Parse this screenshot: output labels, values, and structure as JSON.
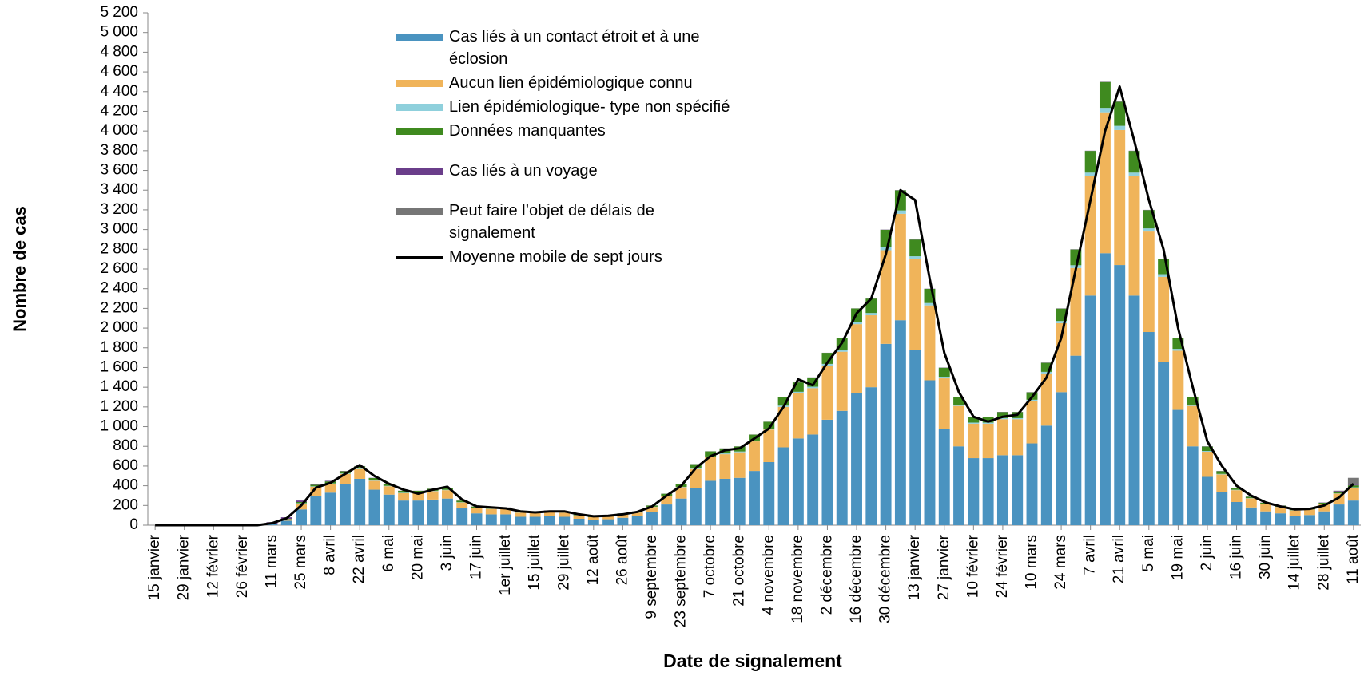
{
  "chart_data": {
    "type": "bar",
    "stacked": true,
    "x_label": "Date de signalement",
    "y_label": "Nombre de cas",
    "categories": [
      "15 janvier",
      null,
      "29 janvier",
      null,
      "12 février",
      null,
      "26 février",
      null,
      "11 mars",
      null,
      "25 mars",
      null,
      "8 avril",
      null,
      "22 avril",
      null,
      "6 mai",
      null,
      "20 mai",
      null,
      "3 juin",
      null,
      "17 juin",
      null,
      "1er juillet",
      null,
      "15 juillet",
      null,
      "29 juillet",
      null,
      "12 août",
      null,
      "26 août",
      null,
      "9 septembre",
      null,
      "23 septembre",
      null,
      "7 octobre",
      null,
      "21 octobre",
      null,
      "4 novembre",
      null,
      "18 novembre",
      null,
      "2 décembre",
      null,
      "16 décembre",
      null,
      "30 décembre",
      null,
      "13 janvier",
      null,
      "27 janvier",
      null,
      "10 février",
      null,
      "24 février",
      null,
      "10 mars",
      null,
      "24 mars",
      null,
      "7 avril",
      null,
      "21 avril",
      null,
      "5 mai",
      null,
      "19 mai",
      null,
      "2 juin",
      null,
      "16 juin",
      null,
      "30 juin",
      null,
      "14 juillet",
      null,
      "28 juillet",
      null,
      "11 août"
    ],
    "ylim": [
      0,
      5200
    ],
    "yticks": [
      0,
      200,
      400,
      600,
      800,
      {
        "value": 1000,
        "label": "1 000"
      },
      {
        "value": 1200,
        "label": "1 200"
      },
      {
        "value": 1400,
        "label": "1 400"
      },
      {
        "value": 1600,
        "label": "1 600"
      },
      {
        "value": 1800,
        "label": "1 800"
      },
      {
        "value": 2000,
        "label": "2 000"
      },
      {
        "value": 2200,
        "label": "2 200"
      },
      {
        "value": 2400,
        "label": "2 400"
      },
      {
        "value": 2600,
        "label": "2 600"
      },
      {
        "value": 2800,
        "label": "2 800"
      },
      {
        "value": 3000,
        "label": "3 000"
      },
      {
        "value": 3200,
        "label": "3 200"
      },
      {
        "value": 3400,
        "label": "3 400"
      },
      {
        "value": 3600,
        "label": "3 600"
      },
      {
        "value": 3800,
        "label": "3 800"
      },
      {
        "value": 4000,
        "label": "4 000"
      },
      {
        "value": 4200,
        "label": "4 200"
      },
      {
        "value": 4400,
        "label": "4 400"
      },
      {
        "value": 4600,
        "label": "4 600"
      },
      {
        "value": 4800,
        "label": "4 800"
      },
      {
        "value": 5000,
        "label": "5 000"
      },
      {
        "value": 5200,
        "label": "5 200"
      }
    ],
    "grid": false,
    "series": [
      {
        "name": "Cas liés à un contact étroit et à une éclosion",
        "color": "#4a93c0",
        "values": [
          0,
          0,
          0,
          0,
          0,
          0,
          0,
          0,
          10,
          45,
          160,
          300,
          330,
          420,
          470,
          360,
          310,
          250,
          250,
          260,
          270,
          170,
          120,
          110,
          110,
          85,
          85,
          90,
          85,
          65,
          55,
          60,
          75,
          90,
          130,
          210,
          270,
          380,
          450,
          470,
          480,
          550,
          640,
          790,
          880,
          920,
          1070,
          1160,
          1340,
          1400,
          1840,
          2080,
          1780,
          1470,
          980,
          800,
          680,
          680,
          710,
          710,
          830,
          1010,
          1350,
          1720,
          2330,
          2760,
          2640,
          2330,
          1960,
          1660,
          1170,
          800,
          490,
          340,
          235,
          180,
          140,
          120,
          97,
          103,
          140,
          210,
          250
        ]
      },
      {
        "name": "Aucun lien épidémiologique connu",
        "color": "#f0b45a",
        "values": [
          0,
          0,
          0,
          0,
          0,
          0,
          0,
          0,
          4,
          15,
          60,
          90,
          90,
          100,
          100,
          90,
          85,
          75,
          75,
          85,
          85,
          60,
          55,
          55,
          55,
          42,
          42,
          46,
          42,
          35,
          26,
          30,
          34,
          38,
          55,
          85,
          115,
          190,
          240,
          250,
          260,
          300,
          330,
          410,
          460,
          470,
          550,
          600,
          700,
          730,
          950,
          1080,
          920,
          760,
          510,
          410,
          350,
          350,
          365,
          365,
          430,
          530,
          700,
          890,
          1210,
          1430,
          1370,
          1210,
          1020,
          860,
          600,
          410,
          255,
          175,
          120,
          92,
          74,
          65,
          52,
          55,
          73,
          110,
          130
        ]
      },
      {
        "name": "Lien épidémiologique- type non spécifié",
        "color": "#8fd0dc",
        "values": [
          0,
          0,
          0,
          0,
          0,
          0,
          0,
          0,
          0,
          1,
          3,
          4,
          4,
          5,
          5,
          5,
          4,
          4,
          4,
          4,
          4,
          3,
          2,
          2,
          2,
          2,
          2,
          2,
          2,
          1,
          1,
          1,
          1,
          1,
          2,
          3,
          4,
          6,
          7,
          8,
          8,
          9,
          10,
          13,
          14,
          15,
          17,
          19,
          22,
          23,
          30,
          34,
          29,
          24,
          16,
          13,
          11,
          11,
          11,
          11,
          13,
          16,
          22,
          28,
          38,
          45,
          43,
          38,
          32,
          27,
          19,
          13,
          8,
          5,
          4,
          3,
          2,
          2,
          2,
          2,
          2,
          3,
          4
        ]
      },
      {
        "name": "Données manquantes",
        "color": "#3f8a1f",
        "values": [
          0,
          0,
          0,
          0,
          0,
          0,
          0,
          0,
          1,
          4,
          12,
          16,
          20,
          22,
          23,
          23,
          20,
          20,
          20,
          20,
          20,
          16,
          12,
          12,
          12,
          10,
          10,
          10,
          9,
          8,
          7,
          8,
          9,
          10,
          12,
          21,
          30,
          43,
          52,
          51,
          51,
          60,
          69,
          86,
          95,
          94,
          112,
          120,
          137,
          146,
          178,
          204,
          169,
          144,
          92,
          75,
          57,
          57,
          62,
          62,
          75,
          92,
          126,
          160,
          220,
          263,
          245,
          220,
          186,
          151,
          109,
          75,
          45,
          28,
          19,
          13,
          12,
          11,
          8,
          8,
          12,
          17,
          20
        ]
      },
      {
        "name": "Cas liés à un voyage",
        "color": "#6a3d8a",
        "values": [
          0,
          0,
          0,
          0,
          0,
          0,
          0,
          0,
          15,
          15,
          15,
          10,
          6,
          3,
          2,
          2,
          1,
          1,
          1,
          1,
          1,
          1,
          1,
          1,
          1,
          1,
          1,
          2,
          2,
          1,
          1,
          1,
          1,
          1,
          1,
          1,
          1,
          1,
          1,
          1,
          1,
          1,
          1,
          1,
          1,
          1,
          1,
          1,
          1,
          1,
          2,
          2,
          2,
          2,
          2,
          2,
          2,
          2,
          2,
          2,
          2,
          2,
          2,
          2,
          2,
          2,
          2,
          2,
          2,
          2,
          2,
          2,
          2,
          2,
          2,
          2,
          2,
          2,
          1,
          2,
          3,
          5,
          6
        ]
      },
      {
        "name": "Peut faire l’objet de délais de signalement",
        "color": "#767676",
        "values": [
          0,
          0,
          0,
          0,
          0,
          0,
          0,
          0,
          0,
          0,
          0,
          0,
          0,
          0,
          0,
          0,
          0,
          0,
          0,
          0,
          0,
          0,
          0,
          0,
          0,
          0,
          0,
          0,
          0,
          0,
          0,
          0,
          0,
          0,
          0,
          0,
          0,
          0,
          0,
          0,
          0,
          0,
          0,
          0,
          0,
          0,
          0,
          0,
          0,
          0,
          0,
          0,
          0,
          0,
          0,
          0,
          0,
          0,
          0,
          0,
          0,
          0,
          0,
          0,
          0,
          0,
          0,
          0,
          0,
          0,
          0,
          0,
          0,
          0,
          0,
          0,
          0,
          0,
          0,
          0,
          0,
          5,
          70
        ]
      },
      {
        "name": "Moyenne mobile de sept jours",
        "color": "#000000",
        "type": "line",
        "values": [
          0,
          0,
          0,
          0,
          0,
          0,
          0,
          0,
          20,
          70,
          200,
          380,
          430,
          520,
          610,
          500,
          420,
          360,
          320,
          360,
          390,
          260,
          190,
          180,
          170,
          140,
          130,
          140,
          140,
          110,
          90,
          95,
          110,
          135,
          190,
          300,
          400,
          580,
          700,
          760,
          780,
          880,
          980,
          1200,
          1480,
          1420,
          1650,
          1850,
          2150,
          2300,
          2750,
          3400,
          3300,
          2500,
          1750,
          1350,
          1100,
          1050,
          1100,
          1120,
          1300,
          1500,
          1900,
          2600,
          3300,
          4000,
          4450,
          3900,
          3300,
          2800,
          2000,
          1400,
          850,
          600,
          400,
          300,
          230,
          190,
          160,
          165,
          200,
          280,
          420
        ]
      }
    ]
  }
}
